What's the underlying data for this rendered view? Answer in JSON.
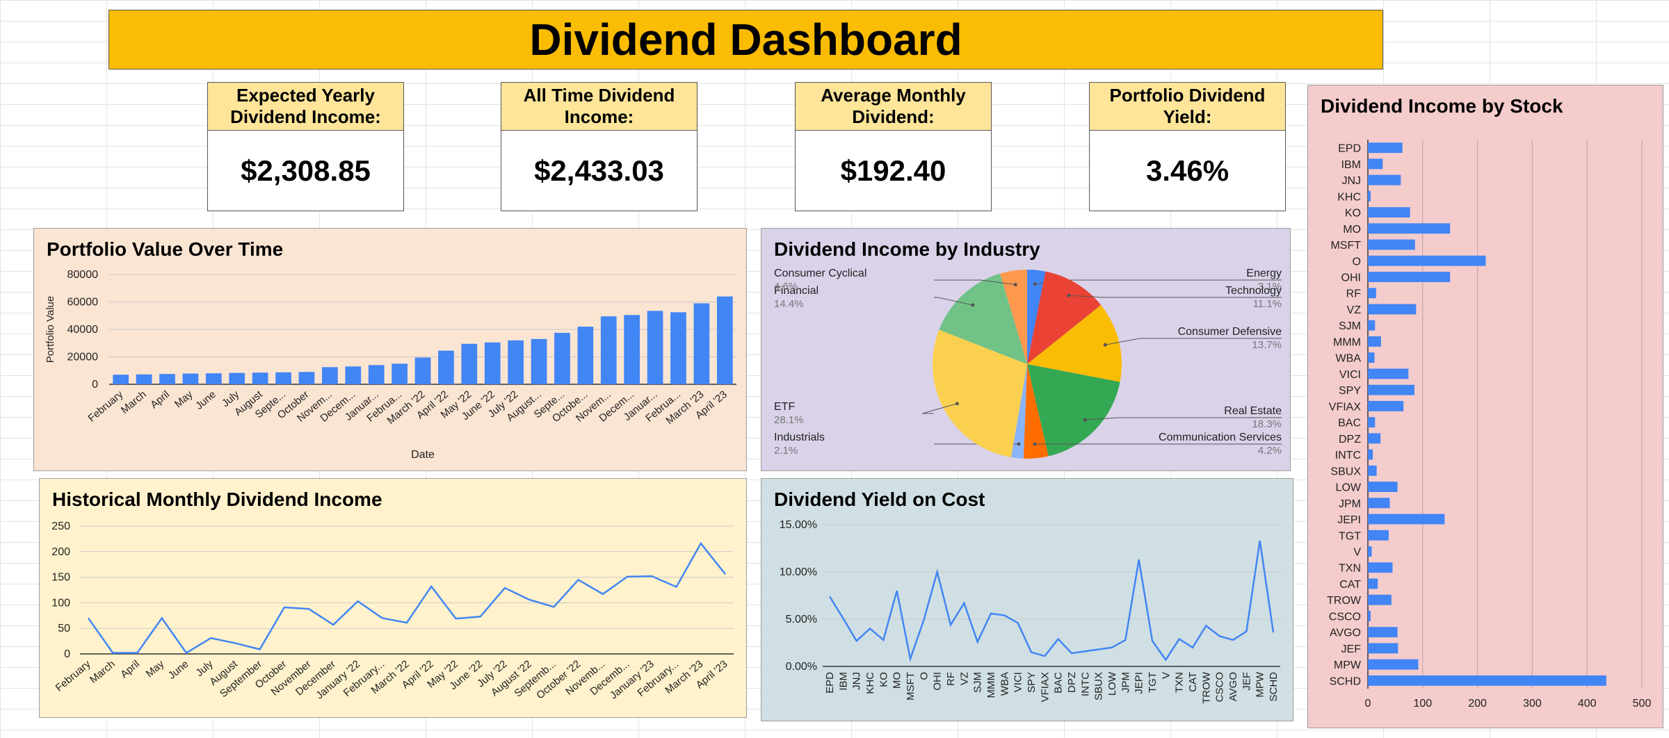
{
  "title": "Dividend Dashboard",
  "kpis": [
    {
      "label": "Expected Yearly Dividend Income:",
      "value": "$2,308.85"
    },
    {
      "label": "All Time Dividend Income:",
      "value": "$2,433.03"
    },
    {
      "label": "Average Monthly Dividend:",
      "value": "$192.40"
    },
    {
      "label": "Portfolio Dividend Yield:",
      "value": "3.46%"
    }
  ],
  "colors": {
    "banner": "#fbbc04",
    "kpi_header": "#ffe599",
    "series": "#4285f4",
    "portfolio_bg": "#fae5d3",
    "industry_bg": "#d9d2e9",
    "monthly_bg": "#fff2cc",
    "yield_bg": "#d0dfe3",
    "stock_bg": "#f4cccc"
  },
  "chart_data": [
    {
      "id": "portfolio",
      "type": "bar",
      "title": "Portfolio Value Over Time",
      "xlabel": "Date",
      "ylabel": "Portfolio Value",
      "ylim": [
        0,
        80000
      ],
      "yticks": [
        "0",
        "20000",
        "40000",
        "60000",
        "80000"
      ],
      "grid": true,
      "categories": [
        "February",
        "March",
        "April",
        "May",
        "June",
        "July",
        "August",
        "Septe...",
        "October",
        "Novem...",
        "Decem...",
        "Januar...",
        "Februa...",
        "March '22",
        "April '22",
        "May '22",
        "June '22",
        "July '22",
        "August...",
        "Septe...",
        "Octobe...",
        "Novem...",
        "Decem...",
        "Januar...",
        "Februa...",
        "March '23",
        "April '23"
      ],
      "values": [
        7000,
        7200,
        7500,
        7800,
        8000,
        8300,
        8500,
        8700,
        9000,
        12500,
        13000,
        14000,
        15000,
        19500,
        24500,
        29500,
        30500,
        32000,
        33000,
        37500,
        42000,
        49500,
        50500,
        53500,
        52500,
        59000,
        64000
      ]
    },
    {
      "id": "industry",
      "type": "pie",
      "title": "Dividend Income by Industry",
      "slices": [
        {
          "label": "Energy",
          "pct": "3.1%",
          "value": 3.1,
          "color": "#4285f4"
        },
        {
          "label": "Technology",
          "pct": "11.1%",
          "value": 11.1,
          "color": "#ea4335"
        },
        {
          "label": "Consumer Defensive",
          "pct": "13.7%",
          "value": 13.7,
          "color": "#fbbc04"
        },
        {
          "label": "Real Estate",
          "pct": "18.3%",
          "value": 18.3,
          "color": "#34a853"
        },
        {
          "label": "Communication Services",
          "pct": "4.2%",
          "value": 4.2,
          "color": "#ff6d01"
        },
        {
          "label": "Industrials",
          "pct": "2.1%",
          "value": 2.1,
          "color": "#8ab4f8"
        },
        {
          "label": "ETF",
          "pct": "28.1%",
          "value": 28.1,
          "color": "#fcd04f"
        },
        {
          "label": "Financial",
          "pct": "14.4%",
          "value": 14.4,
          "color": "#71c287"
        },
        {
          "label": "Consumer Cyclical",
          "pct": "4.6%",
          "value": 4.6,
          "color": "#ff994d"
        }
      ]
    },
    {
      "id": "monthly",
      "type": "line",
      "title": "Historical Monthly Dividend Income",
      "ylim": [
        0,
        250
      ],
      "yticks": [
        "0",
        "50",
        "100",
        "150",
        "200",
        "250"
      ],
      "grid": true,
      "categories": [
        "February",
        "March",
        "April",
        "May",
        "June",
        "July",
        "August",
        "September",
        "October",
        "November",
        "December",
        "January '22",
        "February...",
        "March '22",
        "April '22",
        "May '22",
        "June '22",
        "July '22",
        "August '22",
        "Septemb...",
        "October '22",
        "Novemb...",
        "Decemb...",
        "January '23",
        "February...",
        "March '23",
        "April '23"
      ],
      "values": [
        70,
        2,
        2,
        70,
        2,
        31,
        21,
        9,
        91,
        88,
        57,
        103,
        70,
        61,
        132,
        69,
        73,
        129,
        106,
        92,
        145,
        117,
        151,
        152,
        131,
        216,
        156
      ]
    },
    {
      "id": "yield",
      "type": "line",
      "title": "Dividend Yield on Cost",
      "ylim": [
        0,
        15
      ],
      "yticks": [
        "0.00%",
        "5.00%",
        "10.00%",
        "15.00%"
      ],
      "grid": true,
      "categories": [
        "EPD",
        "IBM",
        "JNJ",
        "KHC",
        "KO",
        "MO",
        "MSFT",
        "O",
        "OHI",
        "RF",
        "VZ",
        "SJM",
        "MMM",
        "WBA",
        "VICI",
        "SPY",
        "VFIAX",
        "BAC",
        "DPZ",
        "INTC",
        "SBUX",
        "LOW",
        "JPM",
        "JEPI",
        "TGT",
        "V",
        "TXN",
        "CAT",
        "TROW",
        "CSCO",
        "AVGO",
        "JEF",
        "MPW",
        "SCHD"
      ],
      "values": [
        7.4,
        5.1,
        2.7,
        4.0,
        2.8,
        8.0,
        0.8,
        4.9,
        10.0,
        4.4,
        6.7,
        2.6,
        5.6,
        5.4,
        4.6,
        1.5,
        1.1,
        2.9,
        1.4,
        1.6,
        1.8,
        2.0,
        2.8,
        11.3,
        2.7,
        0.7,
        2.9,
        2.0,
        4.3,
        3.2,
        2.8,
        3.7,
        13.3,
        3.6
      ]
    },
    {
      "id": "bystock",
      "type": "bar",
      "orientation": "horizontal",
      "title": "Dividend Income by Stock",
      "xlim": [
        0,
        500
      ],
      "xticks": [
        "0",
        "100",
        "200",
        "300",
        "400",
        "500"
      ],
      "grid": true,
      "categories": [
        "EPD",
        "IBM",
        "JNJ",
        "KHC",
        "KO",
        "MO",
        "MSFT",
        "O",
        "OHI",
        "RF",
        "VZ",
        "SJM",
        "MMM",
        "WBA",
        "VICI",
        "SPY",
        "VFIAX",
        "BAC",
        "DPZ",
        "INTC",
        "SBUX",
        "LOW",
        "JPM",
        "JEPI",
        "TGT",
        "V",
        "TXN",
        "CAT",
        "TROW",
        "CSCO",
        "AVGO",
        "JEF",
        "MPW",
        "SCHD"
      ],
      "values": [
        63,
        27,
        60,
        5,
        77,
        150,
        86,
        215,
        150,
        15,
        88,
        13,
        24,
        12,
        74,
        85,
        65,
        13,
        23,
        9,
        16,
        54,
        40,
        140,
        38,
        7,
        45,
        18,
        43,
        5,
        54,
        55,
        92,
        435
      ]
    }
  ]
}
